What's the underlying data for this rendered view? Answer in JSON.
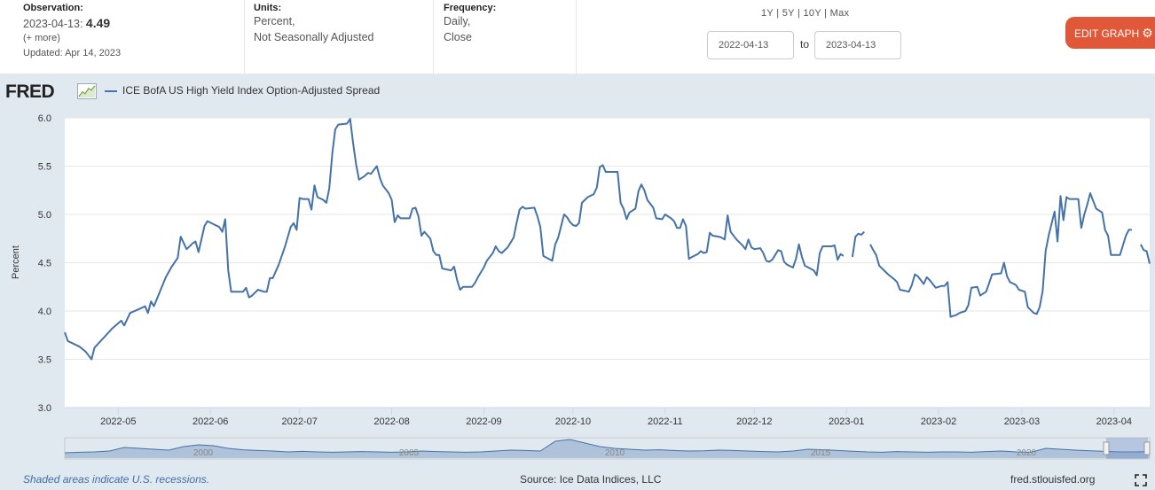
{
  "header": {
    "observation_label": "Observation:",
    "observation_date": "2023-04-13:",
    "observation_value": "4.49",
    "more": "(+ more)",
    "updated": "Updated: Apr 14, 2023",
    "units_label": "Units:",
    "units_line1": "Percent,",
    "units_line2": "Not Seasonally Adjusted",
    "frequency_label": "Frequency:",
    "frequency_line1": "Daily,",
    "frequency_line2": "Close",
    "range_1y": "1Y",
    "range_5y": "5Y",
    "range_10y": "10Y",
    "range_max": "Max",
    "sep": "|",
    "date_from": "2022-04-13",
    "to_label": "to",
    "date_to": "2023-04-13",
    "edit_button": "EDIT GRAPH",
    "edit_icon": "gear-icon"
  },
  "logo": "FRED",
  "footer": {
    "recession_note": "Shaded areas indicate U.S. recessions.",
    "source": "Source: Ice Data Indices, LLC",
    "url": "fred.stlouisfed.org"
  },
  "colors": {
    "line": "#4572a7",
    "plot_bg": "#ffffff",
    "frame_bg": "#e1e9f0",
    "accent": "#e15838"
  },
  "chart_data": {
    "type": "line",
    "series_name": "ICE BofA US High Yield Index Option-Adjusted Spread",
    "ylabel": "Percent",
    "ylim": [
      3.0,
      6.0
    ],
    "yticks": [
      "3.0",
      "3.5",
      "4.0",
      "4.5",
      "5.0",
      "5.5",
      "6.0"
    ],
    "xticks": [
      "2022-05",
      "2022-06",
      "2022-07",
      "2022-08",
      "2022-09",
      "2022-10",
      "2022-11",
      "2022-12",
      "2023-01",
      "2023-02",
      "2023-03",
      "2023-04"
    ],
    "xlim": [
      "2022-04-13",
      "2023-04-13"
    ],
    "grid": true,
    "points": [
      [
        "2022-04-13",
        3.78
      ],
      [
        "2022-04-14",
        3.69
      ],
      [
        "2022-04-18",
        3.63
      ],
      [
        "2022-04-20",
        3.58
      ],
      [
        "2022-04-22",
        3.5
      ],
      [
        "2022-04-23",
        3.62
      ],
      [
        "2022-04-26",
        3.72
      ],
      [
        "2022-04-29",
        3.82
      ],
      [
        "2022-05-02",
        3.9
      ],
      [
        "2022-05-03",
        3.85
      ],
      [
        "2022-05-05",
        3.98
      ],
      [
        "2022-05-08",
        4.02
      ],
      [
        "2022-05-10",
        4.05
      ],
      [
        "2022-05-11",
        3.98
      ],
      [
        "2022-05-12",
        4.1
      ],
      [
        "2022-05-13",
        4.05
      ],
      [
        "2022-05-15",
        4.2
      ],
      [
        "2022-05-17",
        4.35
      ],
      [
        "2022-05-19",
        4.46
      ],
      [
        "2022-05-21",
        4.55
      ],
      [
        "2022-05-22",
        4.77
      ],
      [
        "2022-05-24",
        4.64
      ],
      [
        "2022-05-26",
        4.7
      ],
      [
        "2022-05-27",
        4.72
      ],
      [
        "2022-05-28",
        4.61
      ],
      [
        "2022-05-30",
        4.88
      ],
      [
        "2022-05-31",
        4.93
      ],
      [
        "2022-06-02",
        4.9
      ],
      [
        "2022-06-04",
        4.87
      ],
      [
        "2022-06-05",
        4.82
      ],
      [
        "2022-06-06",
        4.95
      ],
      [
        "2022-06-07",
        4.42
      ],
      [
        "2022-06-08",
        4.2
      ],
      [
        "2022-06-10",
        4.2
      ],
      [
        "2022-06-12",
        4.2
      ],
      [
        "2022-06-13",
        4.24
      ],
      [
        "2022-06-14",
        4.14
      ],
      [
        "2022-06-15",
        4.16
      ],
      [
        "2022-06-17",
        4.22
      ],
      [
        "2022-06-19",
        4.2
      ],
      [
        "2022-06-20",
        4.2
      ],
      [
        "2022-06-21",
        4.34
      ],
      [
        "2022-06-22",
        4.34
      ],
      [
        "2022-06-24",
        4.48
      ],
      [
        "2022-06-26",
        4.66
      ],
      [
        "2022-06-28",
        4.87
      ],
      [
        "2022-06-29",
        4.91
      ],
      [
        "2022-06-30",
        4.84
      ],
      [
        "2022-07-01",
        5.17
      ],
      [
        "2022-07-02",
        5.16
      ],
      [
        "2022-07-04",
        5.16
      ],
      [
        "2022-07-05",
        5.05
      ],
      [
        "2022-07-06",
        5.3
      ],
      [
        "2022-07-07",
        5.18
      ],
      [
        "2022-07-09",
        5.15
      ],
      [
        "2022-07-10",
        5.12
      ],
      [
        "2022-07-11",
        5.27
      ],
      [
        "2022-07-12",
        5.63
      ],
      [
        "2022-07-13",
        5.88
      ],
      [
        "2022-07-14",
        5.93
      ],
      [
        "2022-07-17",
        5.94
      ],
      [
        "2022-07-18",
        5.99
      ],
      [
        "2022-07-19",
        5.74
      ],
      [
        "2022-07-20",
        5.52
      ],
      [
        "2022-07-21",
        5.36
      ],
      [
        "2022-07-23",
        5.4
      ],
      [
        "2022-07-24",
        5.43
      ],
      [
        "2022-07-25",
        5.42
      ],
      [
        "2022-07-27",
        5.5
      ],
      [
        "2022-07-28",
        5.38
      ],
      [
        "2022-07-29",
        5.3
      ],
      [
        "2022-07-31",
        5.22
      ],
      [
        "2022-08-01",
        5.15
      ],
      [
        "2022-08-02",
        4.92
      ],
      [
        "2022-08-03",
        4.99
      ],
      [
        "2022-08-04",
        4.96
      ],
      [
        "2022-08-06",
        4.96
      ],
      [
        "2022-08-07",
        4.96
      ],
      [
        "2022-08-08",
        5.06
      ],
      [
        "2022-08-09",
        5.07
      ],
      [
        "2022-08-10",
        4.98
      ],
      [
        "2022-08-11",
        4.78
      ],
      [
        "2022-08-12",
        4.82
      ],
      [
        "2022-08-14",
        4.75
      ],
      [
        "2022-08-15",
        4.62
      ],
      [
        "2022-08-16",
        4.58
      ],
      [
        "2022-08-17",
        4.58
      ],
      [
        "2022-08-18",
        4.44
      ],
      [
        "2022-08-21",
        4.42
      ],
      [
        "2022-08-22",
        4.46
      ],
      [
        "2022-08-23",
        4.32
      ],
      [
        "2022-08-24",
        4.22
      ],
      [
        "2022-08-25",
        4.25
      ],
      [
        "2022-08-28",
        4.25
      ],
      [
        "2022-08-29",
        4.29
      ],
      [
        "2022-08-30",
        4.35
      ],
      [
        "2022-09-01",
        4.45
      ],
      [
        "2022-09-02",
        4.52
      ],
      [
        "2022-09-04",
        4.6
      ],
      [
        "2022-09-05",
        4.67
      ],
      [
        "2022-09-06",
        4.62
      ],
      [
        "2022-09-07",
        4.6
      ],
      [
        "2022-09-09",
        4.66
      ],
      [
        "2022-09-11",
        4.76
      ],
      [
        "2022-09-12",
        4.91
      ],
      [
        "2022-09-13",
        5.05
      ],
      [
        "2022-09-14",
        5.08
      ],
      [
        "2022-09-15",
        5.06
      ],
      [
        "2022-09-18",
        5.07
      ],
      [
        "2022-09-19",
        4.98
      ],
      [
        "2022-09-20",
        4.87
      ],
      [
        "2022-09-21",
        4.57
      ],
      [
        "2022-09-24",
        4.52
      ],
      [
        "2022-09-25",
        4.69
      ],
      [
        "2022-09-26",
        4.76
      ],
      [
        "2022-09-28",
        5.0
      ],
      [
        "2022-09-29",
        4.97
      ],
      [
        "2022-09-30",
        4.92
      ],
      [
        "2022-10-01",
        4.89
      ],
      [
        "2022-10-02",
        4.88
      ],
      [
        "2022-10-03",
        4.91
      ],
      [
        "2022-10-04",
        5.12
      ],
      [
        "2022-10-06",
        5.18
      ],
      [
        "2022-10-08",
        5.21
      ],
      [
        "2022-10-09",
        5.28
      ],
      [
        "2022-10-10",
        5.49
      ],
      [
        "2022-10-11",
        5.51
      ],
      [
        "2022-10-12",
        5.44
      ],
      [
        "2022-10-16",
        5.44
      ],
      [
        "2022-10-17",
        5.12
      ],
      [
        "2022-10-18",
        5.06
      ],
      [
        "2022-10-19",
        4.95
      ],
      [
        "2022-10-20",
        5.02
      ],
      [
        "2022-10-22",
        5.06
      ],
      [
        "2022-10-23",
        5.24
      ],
      [
        "2022-10-24",
        5.31
      ],
      [
        "2022-10-25",
        5.25
      ],
      [
        "2022-10-26",
        5.15
      ],
      [
        "2022-10-28",
        5.07
      ],
      [
        "2022-10-29",
        4.96
      ],
      [
        "2022-10-31",
        4.95
      ],
      [
        "2022-11-01",
        5.0
      ],
      [
        "2022-11-03",
        4.96
      ],
      [
        "2022-11-04",
        4.93
      ],
      [
        "2022-11-05",
        4.86
      ],
      [
        "2022-11-06",
        4.86
      ],
      [
        "2022-11-07",
        4.95
      ],
      [
        "2022-11-08",
        4.88
      ],
      [
        "2022-11-09",
        4.54
      ],
      [
        "2022-11-10",
        4.56
      ],
      [
        "2022-11-12",
        4.59
      ],
      [
        "2022-11-13",
        4.62
      ],
      [
        "2022-11-14",
        4.6
      ],
      [
        "2022-11-15",
        4.61
      ],
      [
        "2022-11-16",
        4.81
      ],
      [
        "2022-11-17",
        4.78
      ],
      [
        "2022-11-19",
        4.77
      ],
      [
        "2022-11-20",
        4.76
      ],
      [
        "2022-11-21",
        4.74
      ],
      [
        "2022-11-22",
        4.99
      ],
      [
        "2022-11-23",
        4.82
      ],
      [
        "2022-11-25",
        4.74
      ],
      [
        "2022-11-27",
        4.68
      ],
      [
        "2022-11-28",
        4.64
      ],
      [
        "2022-11-29",
        4.74
      ],
      [
        "2022-11-30",
        4.66
      ],
      [
        "2022-12-01",
        4.64
      ],
      [
        "2022-12-03",
        4.65
      ],
      [
        "2022-12-04",
        4.6
      ],
      [
        "2022-12-05",
        4.52
      ],
      [
        "2022-12-06",
        4.51
      ],
      [
        "2022-12-07",
        4.53
      ],
      [
        "2022-12-08",
        4.58
      ],
      [
        "2022-12-09",
        4.63
      ],
      [
        "2022-12-10",
        4.62
      ],
      [
        "2022-12-11",
        4.51
      ],
      [
        "2022-12-12",
        4.48
      ],
      [
        "2022-12-14",
        4.45
      ],
      [
        "2022-12-15",
        4.54
      ],
      [
        "2022-12-16",
        4.69
      ],
      [
        "2022-12-17",
        4.56
      ],
      [
        "2022-12-18",
        4.47
      ],
      [
        "2022-12-21",
        4.42
      ],
      [
        "2022-12-22",
        4.37
      ],
      [
        "2022-12-23",
        4.6
      ],
      [
        "2022-12-24",
        4.67
      ],
      [
        "2022-12-26",
        4.67
      ],
      [
        "2022-12-27",
        4.67
      ],
      [
        "2022-12-28",
        4.68
      ],
      [
        "2022-12-29",
        4.53
      ],
      [
        "2022-12-30",
        4.59
      ],
      [
        "2022-12-31",
        4.57
      ],
      null,
      [
        "2023-01-03",
        4.56
      ],
      [
        "2023-01-04",
        4.77
      ],
      [
        "2023-01-05",
        4.8
      ],
      [
        "2023-01-06",
        4.79
      ],
      [
        "2023-01-07",
        4.82
      ],
      null,
      [
        "2023-01-09",
        4.69
      ],
      [
        "2023-01-10",
        4.63
      ],
      [
        "2023-01-11",
        4.58
      ],
      [
        "2023-01-12",
        4.47
      ],
      [
        "2023-01-15",
        4.38
      ],
      [
        "2023-01-17",
        4.33
      ],
      [
        "2023-01-18",
        4.3
      ],
      [
        "2023-01-19",
        4.22
      ],
      [
        "2023-01-22",
        4.2
      ],
      [
        "2023-01-23",
        4.27
      ],
      [
        "2023-01-24",
        4.38
      ],
      [
        "2023-01-25",
        4.36
      ],
      [
        "2023-01-26",
        4.32
      ],
      [
        "2023-01-27",
        4.28
      ],
      [
        "2023-01-28",
        4.35
      ],
      [
        "2023-01-29",
        4.32
      ],
      [
        "2023-01-31",
        4.24
      ],
      [
        "2023-02-02",
        4.26
      ],
      [
        "2023-02-03",
        4.26
      ],
      [
        "2023-02-04",
        4.3
      ],
      [
        "2023-02-05",
        3.94
      ],
      [
        "2023-02-07",
        3.96
      ],
      [
        "2023-02-08",
        3.98
      ],
      [
        "2023-02-10",
        4.0
      ],
      [
        "2023-02-11",
        4.06
      ],
      [
        "2023-02-12",
        4.24
      ],
      [
        "2023-02-14",
        4.25
      ],
      [
        "2023-02-15",
        4.16
      ],
      [
        "2023-02-17",
        4.2
      ],
      [
        "2023-02-19",
        4.38
      ],
      [
        "2023-02-22",
        4.39
      ],
      [
        "2023-02-23",
        4.5
      ],
      [
        "2023-02-24",
        4.36
      ],
      [
        "2023-02-25",
        4.3
      ],
      [
        "2023-02-27",
        4.27
      ],
      [
        "2023-02-28",
        4.22
      ],
      [
        "2023-03-02",
        4.2
      ],
      [
        "2023-03-03",
        4.04
      ],
      [
        "2023-03-05",
        3.98
      ],
      [
        "2023-03-06",
        3.97
      ],
      [
        "2023-03-07",
        4.04
      ],
      [
        "2023-03-08",
        4.21
      ],
      [
        "2023-03-09",
        4.62
      ],
      [
        "2023-03-10",
        4.78
      ],
      [
        "2023-03-12",
        5.03
      ],
      [
        "2023-03-13",
        4.72
      ],
      [
        "2023-03-14",
        5.19
      ],
      [
        "2023-03-15",
        4.94
      ],
      [
        "2023-03-16",
        5.18
      ],
      [
        "2023-03-17",
        5.16
      ],
      [
        "2023-03-20",
        5.16
      ],
      [
        "2023-03-21",
        4.86
      ],
      [
        "2023-03-22",
        5.0
      ],
      [
        "2023-03-23",
        5.1
      ],
      [
        "2023-03-24",
        5.22
      ],
      [
        "2023-03-25",
        5.14
      ],
      [
        "2023-03-26",
        5.06
      ],
      [
        "2023-03-28",
        5.02
      ],
      [
        "2023-03-29",
        4.84
      ],
      [
        "2023-03-30",
        4.78
      ],
      [
        "2023-03-31",
        4.58
      ],
      [
        "2023-04-03",
        4.58
      ],
      [
        "2023-04-05",
        4.78
      ],
      [
        "2023-04-06",
        4.84
      ],
      [
        "2023-04-07",
        4.84
      ],
      null,
      [
        "2023-04-10",
        4.69
      ],
      [
        "2023-04-11",
        4.63
      ],
      [
        "2023-04-12",
        4.62
      ],
      [
        "2023-04-13",
        4.49
      ]
    ],
    "navigator_ticks": [
      "2000",
      "2005",
      "2010",
      "2015",
      "2020"
    ]
  }
}
